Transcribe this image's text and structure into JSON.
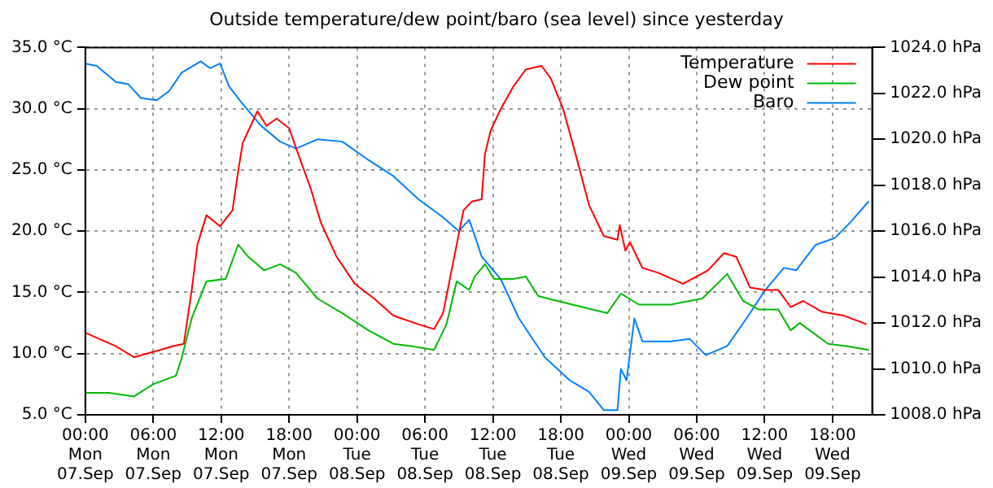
{
  "chart_data": {
    "type": "line",
    "title": "Outside temperature/dew point/baro (sea level) since yesterday",
    "xlim": [
      "--09-07T00:00",
      "--09-09T21:30"
    ],
    "xticks": [
      {
        "value": "--09-07T00:00",
        "label": "00:00\nMon\n07.Sep"
      },
      {
        "value": "--09-07T06:00",
        "label": "06:00\nMon\n07.Sep"
      },
      {
        "value": "--09-07T12:00",
        "label": "12:00\nMon\n07.Sep"
      },
      {
        "value": "--09-07T18:00",
        "label": "18:00\nMon\n07.Sep"
      },
      {
        "value": "--09-08T00:00",
        "label": "00:00\nTue\n08.Sep"
      },
      {
        "value": "--09-08T06:00",
        "label": "06:00\nTue\n08.Sep"
      },
      {
        "value": "--09-08T12:00",
        "label": "12:00\nTue\n08.Sep"
      },
      {
        "value": "--09-08T18:00",
        "label": "18:00\nTue\n08.Sep"
      },
      {
        "value": "--09-09T00:00",
        "label": "00:00\nWed\n09.Sep"
      },
      {
        "value": "--09-09T06:00",
        "label": "06:00\nWed\n09.Sep"
      },
      {
        "value": "--09-09T12:00",
        "label": "12:00\nWed\n09.Sep"
      },
      {
        "value": "--09-09T18:00",
        "label": "18:00\nWed\n09.Sep"
      }
    ],
    "ylim": [
      5,
      35
    ],
    "yticks": [
      {
        "value": 5,
        "label": "5.0 °C"
      },
      {
        "value": 10,
        "label": "10.0 °C"
      },
      {
        "value": 15,
        "label": "15.0 °C"
      },
      {
        "value": 20,
        "label": "20.0 °C"
      },
      {
        "value": 25,
        "label": "25.0 °C"
      },
      {
        "value": 30,
        "label": "30.0 °C"
      },
      {
        "value": 35,
        "label": "35.0 °C"
      }
    ],
    "y2lim": [
      1008,
      1024
    ],
    "y2ticks": [
      {
        "value": 1008,
        "label": "1008.0 hPa"
      },
      {
        "value": 1010,
        "label": "1010.0 hPa"
      },
      {
        "value": 1012,
        "label": "1012.0 hPa"
      },
      {
        "value": 1014,
        "label": "1014.0 hPa"
      },
      {
        "value": 1016,
        "label": "1016.0 hPa"
      },
      {
        "value": 1018,
        "label": "1018.0 hPa"
      },
      {
        "value": 1020,
        "label": "1020.0 hPa"
      },
      {
        "value": 1022,
        "label": "1022.0 hPa"
      },
      {
        "value": 1024,
        "label": "1024.0 hPa"
      }
    ],
    "grid": true,
    "legend": "top right",
    "marker": "none",
    "line_style": "solid",
    "series": [
      {
        "name": "Temperature",
        "color": "#ff0000",
        "x": [
          "--09-07T00:00",
          "--09-07T02:42",
          "--09-07T04:18",
          "--09-07T06:36",
          "--09-07T07:42",
          "--09-07T08:42",
          "--09-07T09:24",
          "--09-07T09:54",
          "--09-07T10:42",
          "--09-07T11:54",
          "--09-07T13:00",
          "--09-07T13:30",
          "--09-07T13:54",
          "--09-07T14:42",
          "--09-07T15:12",
          "--09-07T16:00",
          "--09-07T16:54",
          "--09-07T18:00",
          "--09-07T18:48",
          "--09-07T19:54",
          "--09-07T20:48",
          "--09-07T22:12",
          "--09-07T23:48",
          "--09-08T01:30",
          "--09-08T03:12",
          "--09-08T05:24",
          "--09-08T06:48",
          "--09-08T07:36",
          "--09-08T08:30",
          "--09-08T09:24",
          "--09-08T10:06",
          "--09-08T11:00",
          "--09-08T11:18",
          "--09-08T11:48",
          "--09-08T12:42",
          "--09-08T13:48",
          "--09-08T14:54",
          "--09-08T16:18",
          "--09-08T17:06",
          "--09-08T18:12",
          "--09-08T19:18",
          "--09-08T20:30",
          "--09-08T21:48",
          "--09-08T23:00",
          "--09-08T23:12",
          "--09-08T23:42",
          "--09-09T00:06",
          "--09-09T01:12",
          "--09-09T02:36",
          "--09-09T04:48",
          "--09-09T07:00",
          "--09-09T08:24",
          "--09-09T09:30",
          "--09-09T10:42",
          "--09-09T12:00",
          "--09-09T13:12",
          "--09-09T14:18",
          "--09-09T15:24",
          "--09-09T17:06",
          "--09-09T19:00",
          "--09-09T21:00"
        ],
        "values": [
          11.7,
          10.6,
          9.7,
          10.3,
          10.6,
          10.8,
          15.2,
          18.9,
          21.3,
          20.4,
          21.7,
          24.9,
          27.2,
          28.8,
          29.8,
          28.6,
          29.2,
          28.4,
          26.3,
          23.5,
          20.7,
          17.9,
          15.7,
          14.5,
          13.1,
          12.4,
          12,
          13.3,
          17.5,
          21.7,
          22.4,
          22.6,
          26.3,
          28.2,
          30,
          31.8,
          33.2,
          33.5,
          32.5,
          30,
          26.3,
          22.1,
          19.6,
          19.3,
          20.5,
          18.4,
          19.1,
          17,
          16.6,
          15.7,
          16.8,
          18.2,
          17.9,
          15.4,
          15.2,
          15.2,
          13.8,
          14.3,
          13.4,
          13.1,
          12.4
        ]
      },
      {
        "name": "Dew point",
        "color": "#00bb00",
        "x": [
          "--09-07T00:00",
          "--09-07T02:06",
          "--09-07T04:18",
          "--09-07T06:00",
          "--09-07T08:00",
          "--09-07T08:30",
          "--09-07T09:24",
          "--09-07T10:42",
          "--09-07T12:24",
          "--09-07T13:30",
          "--09-07T14:24",
          "--09-07T15:48",
          "--09-07T17:12",
          "--09-07T18:36",
          "--09-07T20:30",
          "--09-07T22:42",
          "--09-08T01:00",
          "--09-08T03:12",
          "--09-08T04:54",
          "--09-08T06:48",
          "--09-08T07:54",
          "--09-08T08:48",
          "--09-08T09:54",
          "--09-08T10:24",
          "--09-08T11:18",
          "--09-08T12:06",
          "--09-08T13:48",
          "--09-08T14:54",
          "--09-08T16:00",
          "--09-08T17:42",
          "--09-08T19:54",
          "--09-08T22:06",
          "--09-08T23:18",
          "--09-09T00:54",
          "--09-09T03:42",
          "--09-09T06:30",
          "--09-09T08:42",
          "--09-09T10:06",
          "--09-09T11:30",
          "--09-09T13:12",
          "--09-09T14:18",
          "--09-09T15:06",
          "--09-09T17:36",
          "--09-09T19:18",
          "--09-09T21:12"
        ],
        "values": [
          6.8,
          6.8,
          6.5,
          7.5,
          8.2,
          9.6,
          12.9,
          15.9,
          16.1,
          18.9,
          17.9,
          16.8,
          17.3,
          16.6,
          14.5,
          13.3,
          11.9,
          10.8,
          10.6,
          10.3,
          12.4,
          15.9,
          15.2,
          16.3,
          17.3,
          16.1,
          16.1,
          16.3,
          14.7,
          14.3,
          13.8,
          13.3,
          14.9,
          14,
          14,
          14.5,
          16.5,
          14.3,
          13.6,
          13.6,
          11.9,
          12.5,
          10.8,
          10.6,
          10.3
        ]
      },
      {
        "name": "Baro",
        "color": "#0080ff",
        "axis": "y2",
        "x": [
          "--09-07T00:00",
          "--09-07T01:00",
          "--09-07T02:42",
          "--09-07T03:48",
          "--09-07T04:54",
          "--09-07T06:18",
          "--09-07T07:24",
          "--09-07T08:30",
          "--09-07T10:12",
          "--09-07T11:00",
          "--09-07T11:54",
          "--09-07T12:42",
          "--09-07T13:48",
          "--09-07T15:30",
          "--09-07T17:12",
          "--09-07T18:36",
          "--09-07T20:30",
          "--09-07T22:42",
          "--09-08T01:00",
          "--09-08T03:12",
          "--09-08T05:24",
          "--09-08T07:36",
          "--09-08T09:00",
          "--09-08T09:54",
          "--09-08T10:24",
          "--09-08T11:00",
          "--09-08T12:42",
          "--09-08T14:18",
          "--09-08T16:36",
          "--09-08T18:48",
          "--09-08T20:30",
          "--09-08T21:48",
          "--09-08T23:00",
          "--09-08T23:18",
          "--09-08T23:48",
          "--09-09T00:30",
          "--09-09T01:12",
          "--09-09T03:42",
          "--09-09T05:24",
          "--09-09T06:48",
          "--09-09T08:42",
          "--09-09T10:24",
          "--09-09T12:00",
          "--09-09T13:42",
          "--09-09T14:48",
          "--09-09T16:30",
          "--09-09T18:12",
          "--09-09T19:36",
          "--09-09T21:12"
        ],
        "values": [
          1023.3,
          1023.2,
          1022.5,
          1022.4,
          1021.8,
          1021.7,
          1022.1,
          1022.9,
          1023.4,
          1023.1,
          1023.3,
          1022.3,
          1021.6,
          1020.6,
          1019.9,
          1019.6,
          1020,
          1019.9,
          1019.1,
          1018.4,
          1017.4,
          1016.6,
          1016,
          1016.5,
          1015.8,
          1014.9,
          1013.9,
          1012.2,
          1010.5,
          1009.5,
          1009,
          1008.2,
          1008.2,
          1010,
          1009.5,
          1012.2,
          1011.2,
          1011.2,
          1011.3,
          1010.6,
          1011,
          1012.2,
          1013.4,
          1014.4,
          1014.3,
          1015.4,
          1015.7,
          1016.4,
          1017.3
        ]
      }
    ]
  }
}
